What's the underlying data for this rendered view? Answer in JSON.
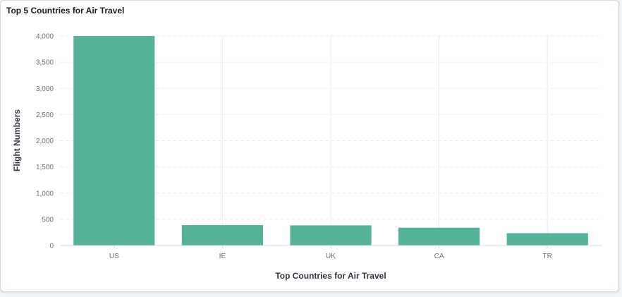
{
  "panel": {
    "title": "Top 5 Countries for Air Travel"
  },
  "colors": {
    "bar": "#54b399",
    "grid": "#e9ecf1",
    "axis": "#d3dae6"
  },
  "chart_data": {
    "type": "bar",
    "title": "Top 5 Countries for Air Travel",
    "xlabel": "Top Countries for Air Travel",
    "ylabel": "Flight Numbers",
    "categories": [
      "US",
      "IE",
      "UK",
      "CA",
      "TR"
    ],
    "values": [
      4000,
      390,
      385,
      340,
      235
    ],
    "ylim": [
      0,
      4000
    ],
    "yticks": [
      0,
      500,
      1000,
      1500,
      2000,
      2500,
      3000,
      3500,
      4000
    ],
    "ytick_labels": [
      "0",
      "500",
      "1,000",
      "1,500",
      "2,000",
      "2,500",
      "3,000",
      "3,500",
      "4,000"
    ],
    "grid": true,
    "legend": "none"
  }
}
